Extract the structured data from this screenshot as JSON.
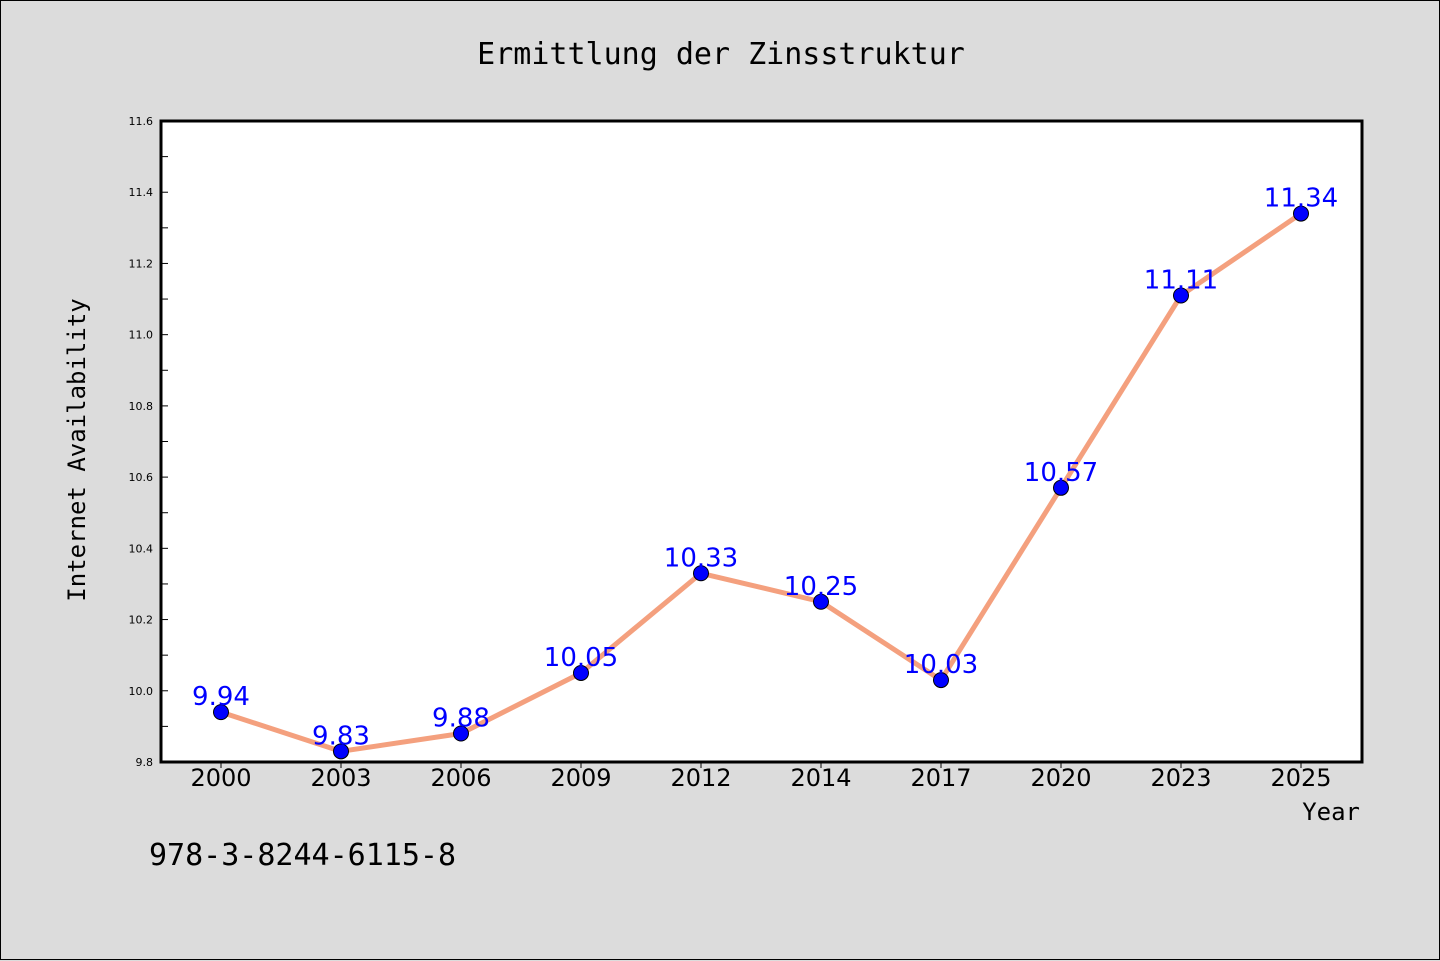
{
  "chart_data": {
    "type": "line",
    "title": "Ermittlung der Zinsstruktur",
    "xlabel": "Year",
    "ylabel": "Internet Availability",
    "categories": [
      "2000",
      "2003",
      "2006",
      "2009",
      "2012",
      "2014",
      "2017",
      "2020",
      "2023",
      "2025"
    ],
    "series": [
      {
        "values": [
          9.94,
          9.83,
          9.88,
          10.05,
          10.33,
          10.25,
          10.03,
          10.57,
          11.11,
          11.34
        ],
        "labels": [
          "9.94",
          "9.83",
          "9.88",
          "10.05",
          "10.33",
          "10.25",
          "10.03",
          "10.57",
          "11.11",
          "11.34"
        ],
        "line_color": "#f4a07e",
        "marker_color": "#0000ff"
      }
    ],
    "ylim": [
      9.8,
      11.6
    ],
    "yticks": [
      "9.8",
      "10.0",
      "10.2",
      "10.4",
      "10.6",
      "10.8",
      "11.0",
      "11.2",
      "11.4",
      "11.6"
    ],
    "grid": false,
    "legend": "none"
  },
  "footnote": "978-3-8244-6115-8",
  "colors": {
    "background": "#dcdcdc",
    "plot_background": "#ffffff"
  }
}
